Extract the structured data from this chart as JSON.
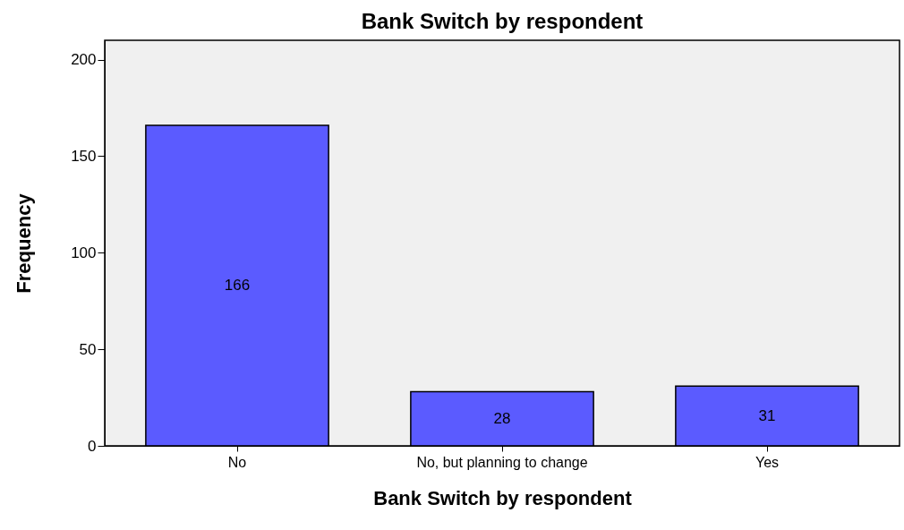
{
  "chart_data": {
    "type": "bar",
    "title": "Bank Switch by respondent",
    "xlabel": "Bank Switch by respondent",
    "ylabel": "Frequency",
    "categories": [
      "No",
      "No, but planning to change",
      "Yes"
    ],
    "values": [
      166,
      28,
      31
    ],
    "color": "#5b5bff",
    "ylim": [
      0,
      210
    ],
    "yticks": [
      0,
      50,
      100,
      150,
      200
    ],
    "grid": false,
    "data_labels": true
  }
}
